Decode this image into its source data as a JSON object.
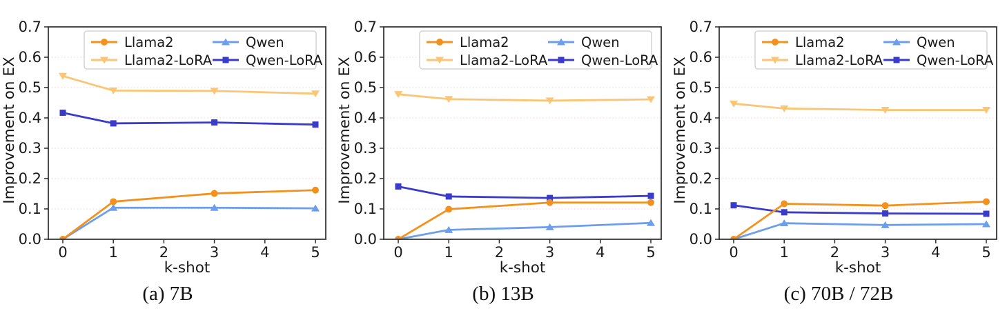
{
  "colors": {
    "axis": "#2b2b2b",
    "grid": "#fbdbdb",
    "text": "#1a1a1a",
    "legend_border": "#cccccc",
    "background": "#ffffff",
    "llama2": "#F2911D",
    "llama2_lora": "#FAC676",
    "qwen": "#6D9EEB",
    "qwen_lora": "#3A3BC8"
  },
  "chart_data": [
    {
      "type": "line",
      "title": "(a) 7B",
      "xlabel": "k-shot",
      "ylabel": "Improvement on EX",
      "x": [
        0,
        1,
        3,
        5
      ],
      "x_ticks": [
        0,
        1,
        2,
        3,
        4,
        5
      ],
      "y_ticks": [
        "0.0",
        "0.1",
        "0.2",
        "0.3",
        "0.4",
        "0.5",
        "0.6",
        "0.7"
      ],
      "ylim": [
        0.0,
        0.7
      ],
      "xlim": [
        -0.28,
        5.25
      ],
      "grid": "horizontal dotted",
      "legend_position": "upper center, 2 columns",
      "series": [
        {
          "name": "Llama2",
          "color": "#F2911D",
          "marker": "circle",
          "values": [
            0.0,
            0.124,
            0.151,
            0.162
          ]
        },
        {
          "name": "Llama2-LoRA",
          "color": "#FAC676",
          "marker": "triangle-down",
          "values": [
            0.538,
            0.49,
            0.489,
            0.48
          ]
        },
        {
          "name": "Qwen",
          "color": "#6D9EEB",
          "marker": "triangle-up",
          "values": [
            0.0,
            0.104,
            0.104,
            0.102
          ]
        },
        {
          "name": "Qwen-LoRA",
          "color": "#3A3BC8",
          "marker": "square",
          "values": [
            0.417,
            0.382,
            0.385,
            0.378
          ]
        }
      ]
    },
    {
      "type": "line",
      "title": "(b) 13B",
      "xlabel": "k-shot",
      "ylabel": "Improvement on EX",
      "x": [
        0,
        1,
        3,
        5
      ],
      "x_ticks": [
        0,
        1,
        2,
        3,
        4,
        5
      ],
      "y_ticks": [
        "0.0",
        "0.1",
        "0.2",
        "0.3",
        "0.4",
        "0.5",
        "0.6",
        "0.7"
      ],
      "ylim": [
        0.0,
        0.7
      ],
      "xlim": [
        -0.28,
        5.25
      ],
      "grid": "horizontal dotted",
      "legend_position": "upper center, 2 columns",
      "series": [
        {
          "name": "Llama2",
          "color": "#F2911D",
          "marker": "circle",
          "values": [
            0.0,
            0.099,
            0.121,
            0.121
          ]
        },
        {
          "name": "Llama2-LoRA",
          "color": "#FAC676",
          "marker": "triangle-down",
          "values": [
            0.478,
            0.462,
            0.457,
            0.461
          ]
        },
        {
          "name": "Qwen",
          "color": "#6D9EEB",
          "marker": "triangle-up",
          "values": [
            0.0,
            0.031,
            0.04,
            0.054
          ]
        },
        {
          "name": "Qwen-LoRA",
          "color": "#3A3BC8",
          "marker": "square",
          "values": [
            0.174,
            0.141,
            0.136,
            0.143
          ]
        }
      ]
    },
    {
      "type": "line",
      "title": "(c) 70B / 72B",
      "xlabel": "k-shot",
      "ylabel": "Improvement on EX",
      "x": [
        0,
        1,
        3,
        5
      ],
      "x_ticks": [
        0,
        1,
        2,
        3,
        4,
        5
      ],
      "y_ticks": [
        "0.0",
        "0.1",
        "0.2",
        "0.3",
        "0.4",
        "0.5",
        "0.6",
        "0.7"
      ],
      "ylim": [
        0.0,
        0.7
      ],
      "xlim": [
        -0.28,
        5.25
      ],
      "grid": "horizontal dotted",
      "legend_position": "upper center, 2 columns",
      "series": [
        {
          "name": "Llama2",
          "color": "#F2911D",
          "marker": "circle",
          "values": [
            0.0,
            0.117,
            0.111,
            0.124
          ]
        },
        {
          "name": "Llama2-LoRA",
          "color": "#FAC676",
          "marker": "triangle-down",
          "values": [
            0.447,
            0.431,
            0.426,
            0.426
          ]
        },
        {
          "name": "Qwen",
          "color": "#6D9EEB",
          "marker": "triangle-up",
          "values": [
            0.0,
            0.053,
            0.047,
            0.05
          ]
        },
        {
          "name": "Qwen-LoRA",
          "color": "#3A3BC8",
          "marker": "square",
          "values": [
            0.112,
            0.089,
            0.085,
            0.084
          ]
        }
      ]
    }
  ]
}
